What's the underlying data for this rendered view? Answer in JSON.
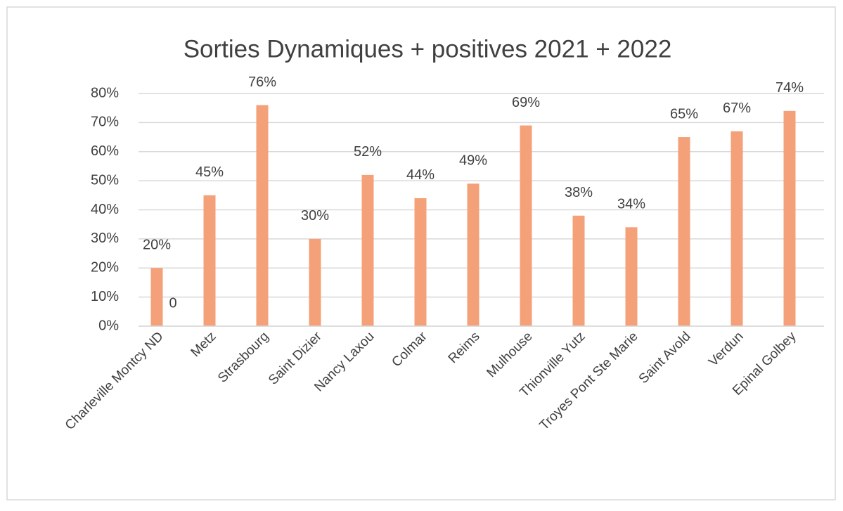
{
  "chart_data": {
    "type": "bar",
    "title": "Sorties Dynamiques + positives 2021 + 2022",
    "categories": [
      "Charleville Montcy ND",
      "Metz",
      "Strasbourg",
      "Saint Dizier",
      "Nancy Laxou",
      "Colmar",
      "Reims",
      "Mulhouse",
      "Thionville Yutz",
      "Troyes Pont Ste Marie",
      "Saint Avold",
      "Verdun",
      "Epinal Golbey"
    ],
    "series": [
      {
        "color": "#f4a078",
        "values": [
          20,
          45,
          76,
          30,
          52,
          44,
          49,
          69,
          38,
          34,
          65,
          67,
          74
        ],
        "value_labels": [
          "20%",
          "45%",
          "76%",
          "30%",
          "52%",
          "44%",
          "49%",
          "69%",
          "38%",
          "34%",
          "65%",
          "67%",
          "74%"
        ]
      },
      {
        "color": "#a5a5a5",
        "values": [
          0,
          null,
          null,
          null,
          null,
          null,
          null,
          null,
          null,
          null,
          null,
          null,
          null
        ],
        "value_labels": [
          "0",
          null,
          null,
          null,
          null,
          null,
          null,
          null,
          null,
          null,
          null,
          null,
          null
        ]
      }
    ],
    "ylim": [
      0,
      80
    ],
    "yticks": [
      {
        "value": 0,
        "label": "0%"
      },
      {
        "value": 10,
        "label": "10%"
      },
      {
        "value": 20,
        "label": "20%"
      },
      {
        "value": 30,
        "label": "30%"
      },
      {
        "value": 40,
        "label": "40%"
      },
      {
        "value": 50,
        "label": "50%"
      },
      {
        "value": 60,
        "label": "60%"
      },
      {
        "value": 70,
        "label": "70%"
      },
      {
        "value": 80,
        "label": "80%"
      }
    ],
    "grid": true
  }
}
